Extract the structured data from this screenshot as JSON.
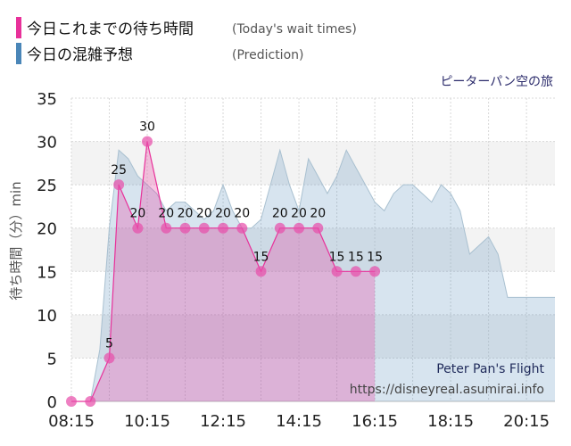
{
  "legend": [
    {
      "label": "今日これまでの待ち時間",
      "sub": "(Today's wait times)",
      "color": "#e8319a"
    },
    {
      "label": "今日の混雑予想",
      "sub": "(Prediction)",
      "color": "#4a86b8"
    }
  ],
  "attraction_name": "ピーターパン空の旅",
  "attraction_en": "Peter Pan's Flight",
  "site_url": "https://disneyreal.asumirai.info",
  "chart_data": {
    "type": "area",
    "ylabel": "待ち時間（分）min",
    "ylim": [
      0,
      35
    ],
    "yticks": [
      0,
      5,
      10,
      15,
      20,
      25,
      30,
      35
    ],
    "xlim": [
      "08:15",
      "21:00"
    ],
    "xticks": [
      "08:15",
      "10:15",
      "12:15",
      "14:15",
      "16:15",
      "18:15",
      "20:15"
    ],
    "grid": true,
    "series": [
      {
        "name": "今日の混雑予想",
        "color": "#4a86b8",
        "x": [
          "08:15",
          "08:30",
          "08:45",
          "09:00",
          "09:15",
          "09:30",
          "09:45",
          "10:00",
          "10:15",
          "10:30",
          "10:45",
          "11:00",
          "11:15",
          "11:30",
          "11:45",
          "12:00",
          "12:15",
          "12:30",
          "12:45",
          "13:00",
          "13:15",
          "13:30",
          "13:45",
          "14:00",
          "14:15",
          "14:30",
          "14:45",
          "15:00",
          "15:15",
          "15:30",
          "15:45",
          "16:00",
          "16:15",
          "16:30",
          "16:45",
          "17:00",
          "17:15",
          "17:30",
          "17:45",
          "18:00",
          "18:15",
          "18:30",
          "18:45",
          "19:00",
          "19:15",
          "19:30",
          "19:45",
          "20:00",
          "20:15",
          "20:30",
          "20:45",
          "21:00"
        ],
        "values": [
          0,
          0,
          0,
          6,
          20,
          29,
          28,
          26,
          25,
          24,
          22,
          23,
          23,
          22,
          21,
          22,
          25,
          22,
          20,
          20,
          21,
          25,
          29,
          25,
          22,
          28,
          26,
          24,
          26,
          29,
          27,
          25,
          23,
          22,
          24,
          25,
          25,
          24,
          23,
          25,
          24,
          22,
          17,
          18,
          19,
          17,
          12,
          12,
          12,
          12,
          12,
          12
        ]
      },
      {
        "name": "今日これまでの待ち時間",
        "color": "#e8319a",
        "x": [
          "08:15",
          "08:45",
          "09:15",
          "09:30",
          "10:00",
          "10:15",
          "10:45",
          "11:15",
          "11:45",
          "12:15",
          "12:45",
          "13:15",
          "13:45",
          "14:15",
          "14:45",
          "15:15",
          "15:45",
          "16:15"
        ],
        "values": [
          0,
          0,
          5,
          25,
          20,
          30,
          20,
          20,
          20,
          20,
          20,
          15,
          20,
          20,
          20,
          15,
          15,
          15
        ]
      }
    ]
  }
}
